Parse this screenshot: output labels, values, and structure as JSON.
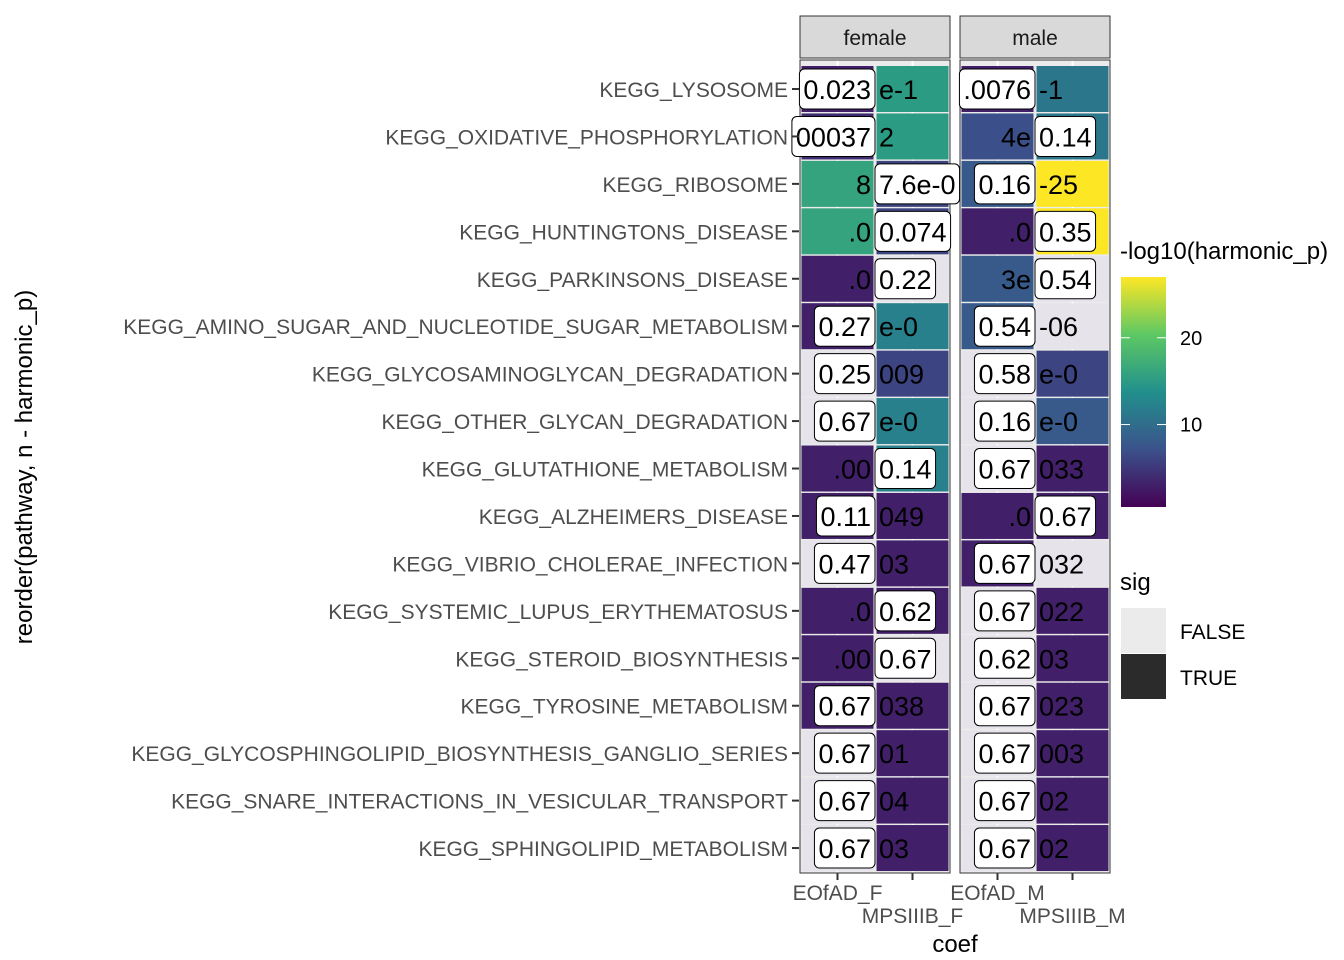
{
  "chart_data": {
    "type": "heatmap",
    "xlabel": "coef",
    "ylabel": "reorder(pathway, n - harmonic_p)",
    "facets": [
      "female",
      "male"
    ],
    "x_ticks": {
      "female": [
        "EOfAD_F",
        "MPSIIIB_F"
      ],
      "male": [
        "EOfAD_M",
        "MPSIIIB_M"
      ]
    },
    "rows": [
      {
        "pathway": "KEGG_LYSOSOME",
        "female": {
          "fill": [
            3,
            15
          ],
          "labels": [
            "0.023",
            "e-1"
          ],
          "top": 0
        },
        "male": {
          "fill": [
            3,
            11
          ],
          "labels": [
            ".0076",
            "-1"
          ],
          "top": 0
        }
      },
      {
        "pathway": "KEGG_OXIDATIVE_PHOSPHORYLATION",
        "female": {
          "fill": [
            4,
            15
          ],
          "labels": [
            "00037",
            "2"
          ],
          "top": 0
        },
        "male": {
          "fill": [
            7,
            11
          ],
          "labels": [
            "4e",
            "0.14"
          ],
          "top": 1
        }
      },
      {
        "pathway": "KEGG_RIBOSOME",
        "female": {
          "fill": [
            16,
            6
          ],
          "labels": [
            "8",
            "7.6e-0"
          ],
          "top": 1
        },
        "male": {
          "fill": [
            8,
            27
          ],
          "labels": [
            "0.16",
            "-25"
          ],
          "top": 0
        }
      },
      {
        "pathway": "KEGG_HUNTINGTONS_DISEASE",
        "female": {
          "fill": [
            16,
            6
          ],
          "labels": [
            ".0",
            "0.074"
          ],
          "top": 1
        },
        "male": {
          "fill": [
            3,
            27
          ],
          "labels": [
            ".0",
            "0.35"
          ],
          "top": 1
        }
      },
      {
        "pathway": "KEGG_PARKINSONS_DISEASE",
        "female": {
          "fill": [
            3,
            null
          ],
          "labels": [
            ".0",
            "0.22"
          ],
          "top": 1
        },
        "male": {
          "fill": [
            8,
            null
          ],
          "labels": [
            "3e",
            "0.54"
          ],
          "top": 1
        }
      },
      {
        "pathway": "KEGG_AMINO_SUGAR_AND_NUCLEOTIDE_SUGAR_METABOLISM",
        "female": {
          "fill": [
            3,
            12
          ],
          "labels": [
            "0.27",
            "e-0"
          ],
          "top": 0
        },
        "male": {
          "fill": [
            8,
            null
          ],
          "labels": [
            "0.54",
            "-06"
          ],
          "top": 0
        }
      },
      {
        "pathway": "KEGG_GLYCOSAMINOGLYCAN_DEGRADATION",
        "female": {
          "fill": [
            null,
            6
          ],
          "labels": [
            "0.25",
            "009"
          ],
          "top": 0
        },
        "male": {
          "fill": [
            null,
            6
          ],
          "labels": [
            "0.58",
            "e-0"
          ],
          "top": 0
        }
      },
      {
        "pathway": "KEGG_OTHER_GLYCAN_DEGRADATION",
        "female": {
          "fill": [
            null,
            12
          ],
          "labels": [
            "0.67",
            "e-0"
          ],
          "top": 0
        },
        "male": {
          "fill": [
            null,
            8
          ],
          "labels": [
            "0.16",
            "e-0"
          ],
          "top": 0
        }
      },
      {
        "pathway": "KEGG_GLUTATHIONE_METABOLISM",
        "female": {
          "fill": [
            3,
            12
          ],
          "labels": [
            ".00",
            "0.14"
          ],
          "top": 1
        },
        "male": {
          "fill": [
            null,
            3
          ],
          "labels": [
            "0.67",
            "033"
          ],
          "top": 0
        }
      },
      {
        "pathway": "KEGG_ALZHEIMERS_DISEASE",
        "female": {
          "fill": [
            3,
            3
          ],
          "labels": [
            "0.11",
            "049"
          ],
          "top": 0
        },
        "male": {
          "fill": [
            3,
            3
          ],
          "labels": [
            ".0",
            "0.67"
          ],
          "top": 1
        }
      },
      {
        "pathway": "KEGG_VIBRIO_CHOLERAE_INFECTION",
        "female": {
          "fill": [
            null,
            3
          ],
          "labels": [
            "0.47",
            "03"
          ],
          "top": 0
        },
        "male": {
          "fill": [
            3,
            null
          ],
          "labels": [
            "0.67",
            "032"
          ],
          "top": 0
        }
      },
      {
        "pathway": "KEGG_SYSTEMIC_LUPUS_ERYTHEMATOSUS",
        "female": {
          "fill": [
            3,
            3
          ],
          "labels": [
            ".0",
            "0.62"
          ],
          "top": 1
        },
        "male": {
          "fill": [
            null,
            3
          ],
          "labels": [
            "0.67",
            "022"
          ],
          "top": 0
        }
      },
      {
        "pathway": "KEGG_STEROID_BIOSYNTHESIS",
        "female": {
          "fill": [
            3,
            null
          ],
          "labels": [
            ".00",
            "0.67"
          ],
          "top": 1
        },
        "male": {
          "fill": [
            null,
            3
          ],
          "labels": [
            "0.62",
            "03"
          ],
          "top": 0
        }
      },
      {
        "pathway": "KEGG_TYROSINE_METABOLISM",
        "female": {
          "fill": [
            3,
            3
          ],
          "labels": [
            "0.67",
            "038"
          ],
          "top": 0
        },
        "male": {
          "fill": [
            null,
            3
          ],
          "labels": [
            "0.67",
            "023"
          ],
          "top": 0
        }
      },
      {
        "pathway": "KEGG_GLYCOSPHINGOLIPID_BIOSYNTHESIS_GANGLIO_SERIES",
        "female": {
          "fill": [
            null,
            3
          ],
          "labels": [
            "0.67",
            "01"
          ],
          "top": 0
        },
        "male": {
          "fill": [
            null,
            3
          ],
          "labels": [
            "0.67",
            "003"
          ],
          "top": 0
        }
      },
      {
        "pathway": "KEGG_SNARE_INTERACTIONS_IN_VESICULAR_TRANSPORT",
        "female": {
          "fill": [
            null,
            3
          ],
          "labels": [
            "0.67",
            "04"
          ],
          "top": 0
        },
        "male": {
          "fill": [
            null,
            3
          ],
          "labels": [
            "0.67",
            "02"
          ],
          "top": 0
        }
      },
      {
        "pathway": "KEGG_SPHINGOLIPID_METABOLISM",
        "female": {
          "fill": [
            null,
            3
          ],
          "labels": [
            "0.67",
            "03"
          ],
          "top": 0
        },
        "male": {
          "fill": [
            null,
            3
          ],
          "labels": [
            "0.67",
            "02"
          ],
          "top": 0
        }
      }
    ],
    "legend_fill": {
      "title": "-log10(harmonic_p)",
      "ticks": [
        10,
        20
      ],
      "range": [
        0.5,
        27
      ],
      "palette": "viridis"
    },
    "legend_sig": {
      "title": "sig",
      "entries": [
        {
          "label": "FALSE",
          "color": "#ebebeb"
        },
        {
          "label": "TRUE",
          "color": "#2b2b2b"
        }
      ]
    },
    "not_sig_color": "#e6e3eb"
  }
}
